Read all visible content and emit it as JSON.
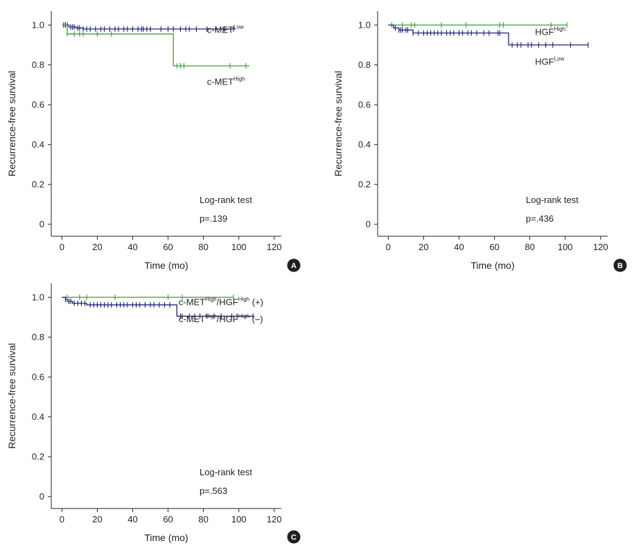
{
  "chart_data": [
    {
      "id": "A",
      "type": "line",
      "subtype": "kaplan-meier",
      "panel_label": "A",
      "xlabel": "Time (mo)",
      "ylabel": "Recurrence-free survival",
      "xlim": [
        -6,
        124
      ],
      "ylim": [
        -0.06,
        1.07
      ],
      "xticks": [
        0,
        20,
        40,
        60,
        80,
        100,
        120
      ],
      "yticks": [
        0,
        0.2,
        0.4,
        0.6,
        0.8,
        1.0
      ],
      "ytick_labels": [
        "0",
        "0.2",
        "0.4",
        "0.6",
        "0.8",
        "1.0"
      ],
      "series": [
        {
          "name": "c-MET Low",
          "label_base": "c-MET",
          "label_sup": "Low",
          "label_suffix": "",
          "color": "#1b1f6e",
          "steps": [
            [
              0,
              1.0
            ],
            [
              4,
              0.99
            ],
            [
              8,
              0.985
            ],
            [
              12,
              0.98
            ],
            [
              98,
              0.98
            ]
          ],
          "censor": [
            1,
            2,
            3,
            5,
            6,
            7,
            9,
            10,
            12,
            14,
            16,
            19,
            22,
            24,
            27,
            30,
            32,
            35,
            37,
            40,
            43,
            45,
            46,
            48,
            50,
            56,
            60,
            63,
            67,
            70,
            72,
            76,
            82,
            87,
            92,
            97
          ],
          "label_at": [
            82,
            0.96
          ]
        },
        {
          "name": "c-MET High",
          "label_base": "c-MET",
          "label_sup": "High",
          "label_suffix": "",
          "color": "#3a9a3a",
          "steps": [
            [
              0,
              1.0
            ],
            [
              3,
              0.955
            ],
            [
              63,
              0.955
            ],
            [
              63,
              0.795
            ],
            [
              106,
              0.795
            ]
          ],
          "censor": [
            3,
            7,
            10,
            12,
            20,
            28,
            65,
            67,
            69,
            95,
            104
          ],
          "label_at": [
            82,
            0.7
          ]
        }
      ],
      "annotations": {
        "test": "Log-rank test",
        "p": "p=.139"
      }
    },
    {
      "id": "B",
      "type": "line",
      "subtype": "kaplan-meier",
      "panel_label": "B",
      "xlabel": "Time (mo)",
      "ylabel": "Recurrence-free survival",
      "xlim": [
        -6,
        124
      ],
      "ylim": [
        -0.06,
        1.07
      ],
      "xticks": [
        0,
        20,
        40,
        60,
        80,
        100,
        120
      ],
      "yticks": [
        0,
        0.2,
        0.4,
        0.6,
        0.8,
        1.0
      ],
      "ytick_labels": [
        "0",
        "0.2",
        "0.4",
        "0.6",
        "0.8",
        "1.0"
      ],
      "series": [
        {
          "name": "HGF High",
          "label_base": "HGF",
          "label_sup": "High",
          "label_suffix": "",
          "color": "#3a9a3a",
          "steps": [
            [
              0,
              1.0
            ],
            [
              101,
              1.0
            ]
          ],
          "censor": [
            2,
            8,
            13,
            15,
            30,
            44,
            63,
            65,
            92,
            101
          ],
          "label_at": [
            83,
            0.95
          ]
        },
        {
          "name": "HGF Low",
          "label_base": "HGF",
          "label_sup": "Low",
          "label_suffix": "",
          "color": "#1b1f6e",
          "steps": [
            [
              0,
              1.0
            ],
            [
              3,
              0.985
            ],
            [
              6,
              0.975
            ],
            [
              14,
              0.96
            ],
            [
              68,
              0.96
            ],
            [
              68,
              0.9
            ],
            [
              113,
              0.9
            ]
          ],
          "censor": [
            4,
            6,
            7,
            8,
            10,
            11,
            14,
            17,
            20,
            22,
            24,
            26,
            28,
            30,
            33,
            35,
            37,
            40,
            42,
            45,
            47,
            50,
            54,
            57,
            62,
            63,
            70,
            73,
            75,
            79,
            81,
            85,
            89,
            93,
            103,
            113
          ],
          "label_at": [
            83,
            0.8
          ]
        }
      ],
      "annotations": {
        "test": "Log-rank test",
        "p": "p=.436"
      }
    },
    {
      "id": "C",
      "type": "line",
      "subtype": "kaplan-meier",
      "panel_label": "C",
      "xlabel": "Time (mo)",
      "ylabel": "Recurrence-free survival",
      "xlim": [
        -6,
        124
      ],
      "ylim": [
        -0.06,
        1.07
      ],
      "xticks": [
        0,
        20,
        40,
        60,
        80,
        100,
        120
      ],
      "yticks": [
        0,
        0.2,
        0.4,
        0.6,
        0.8,
        1.0
      ],
      "ytick_labels": [
        "0",
        "0.2",
        "0.4",
        "0.6",
        "0.8",
        "1.0"
      ],
      "series": [
        {
          "name": "c-MET High/HGF High (+)",
          "label_base": "c-MET",
          "label_sup": "High",
          "label_mid": "/HGF",
          "label_sup2": "High",
          "label_suffix": " (+)",
          "color": "#3a9a3a",
          "steps": [
            [
              0,
              1.0
            ],
            [
              97,
              1.0
            ]
          ],
          "censor": [
            3,
            10,
            14,
            30,
            60,
            68,
            97
          ],
          "label_at": [
            66,
            0.96
          ]
        },
        {
          "name": "c-MET High/HGF High (−)",
          "label_base": "c-MET",
          "label_sup": "High",
          "label_mid": "/HGF",
          "label_sup2": "High",
          "label_suffix": " (–)",
          "color": "#1b1f6e",
          "steps": [
            [
              0,
              1.0
            ],
            [
              2,
              0.99
            ],
            [
              3,
              0.98
            ],
            [
              6,
              0.97
            ],
            [
              14,
              0.962
            ],
            [
              65,
              0.962
            ],
            [
              65,
              0.905
            ],
            [
              108,
              0.905
            ]
          ],
          "censor": [
            2,
            4,
            5,
            7,
            9,
            11,
            13,
            16,
            18,
            20,
            22,
            24,
            26,
            28,
            31,
            33,
            35,
            37,
            40,
            42,
            44,
            47,
            50,
            52,
            55,
            58,
            61,
            67,
            68,
            72,
            75,
            78,
            82,
            86,
            90,
            96,
            99,
            108
          ],
          "label_at": [
            66,
            0.875
          ]
        }
      ],
      "annotations": {
        "test": "Log-rank test",
        "p": "p=.563"
      }
    }
  ]
}
